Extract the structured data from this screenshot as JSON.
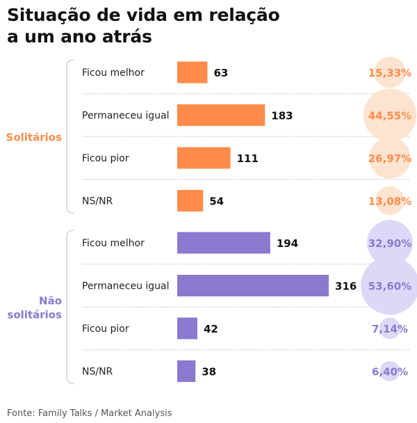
{
  "title_lines": [
    "Situação de vida em relação",
    "a um ano atrás"
  ],
  "source": "Fonte: Family Talks / Market Analysis",
  "colors": {
    "solitarios": "#ff8c4a",
    "solitarios_bubble": "#fde4d0",
    "nao_solitarios": "#8b79cf",
    "nao_solitarios_bubble": "#ddd8f7",
    "divider": "#c8c8c8",
    "value_text": "#111111",
    "label_text": "#222222"
  },
  "chart_data": {
    "type": "bar",
    "orientation": "horizontal",
    "title": "Situação de vida em relação a um ano atrás",
    "categories": [
      "Ficou melhor",
      "Permaneceu igual",
      "Ficou pior",
      "NS/NR"
    ],
    "groups": [
      {
        "name": "Solitários",
        "name_lines": [
          "Solitários"
        ],
        "color_key": "solitarios",
        "values": [
          63,
          183,
          111,
          54
        ],
        "percent_labels": [
          "15,33%",
          "44,55%",
          "26,97%",
          "13,08%"
        ],
        "percents": [
          15.33,
          44.55,
          26.97,
          13.08
        ]
      },
      {
        "name": "Não solitários",
        "name_lines": [
          "Não",
          "solitários"
        ],
        "color_key": "nao_solitarios",
        "values": [
          194,
          316,
          42,
          38
        ],
        "percent_labels": [
          "32,90%",
          "53,60%",
          "7,14%",
          "6,40%"
        ],
        "percents": [
          32.9,
          53.6,
          7.14,
          6.4
        ]
      }
    ]
  }
}
